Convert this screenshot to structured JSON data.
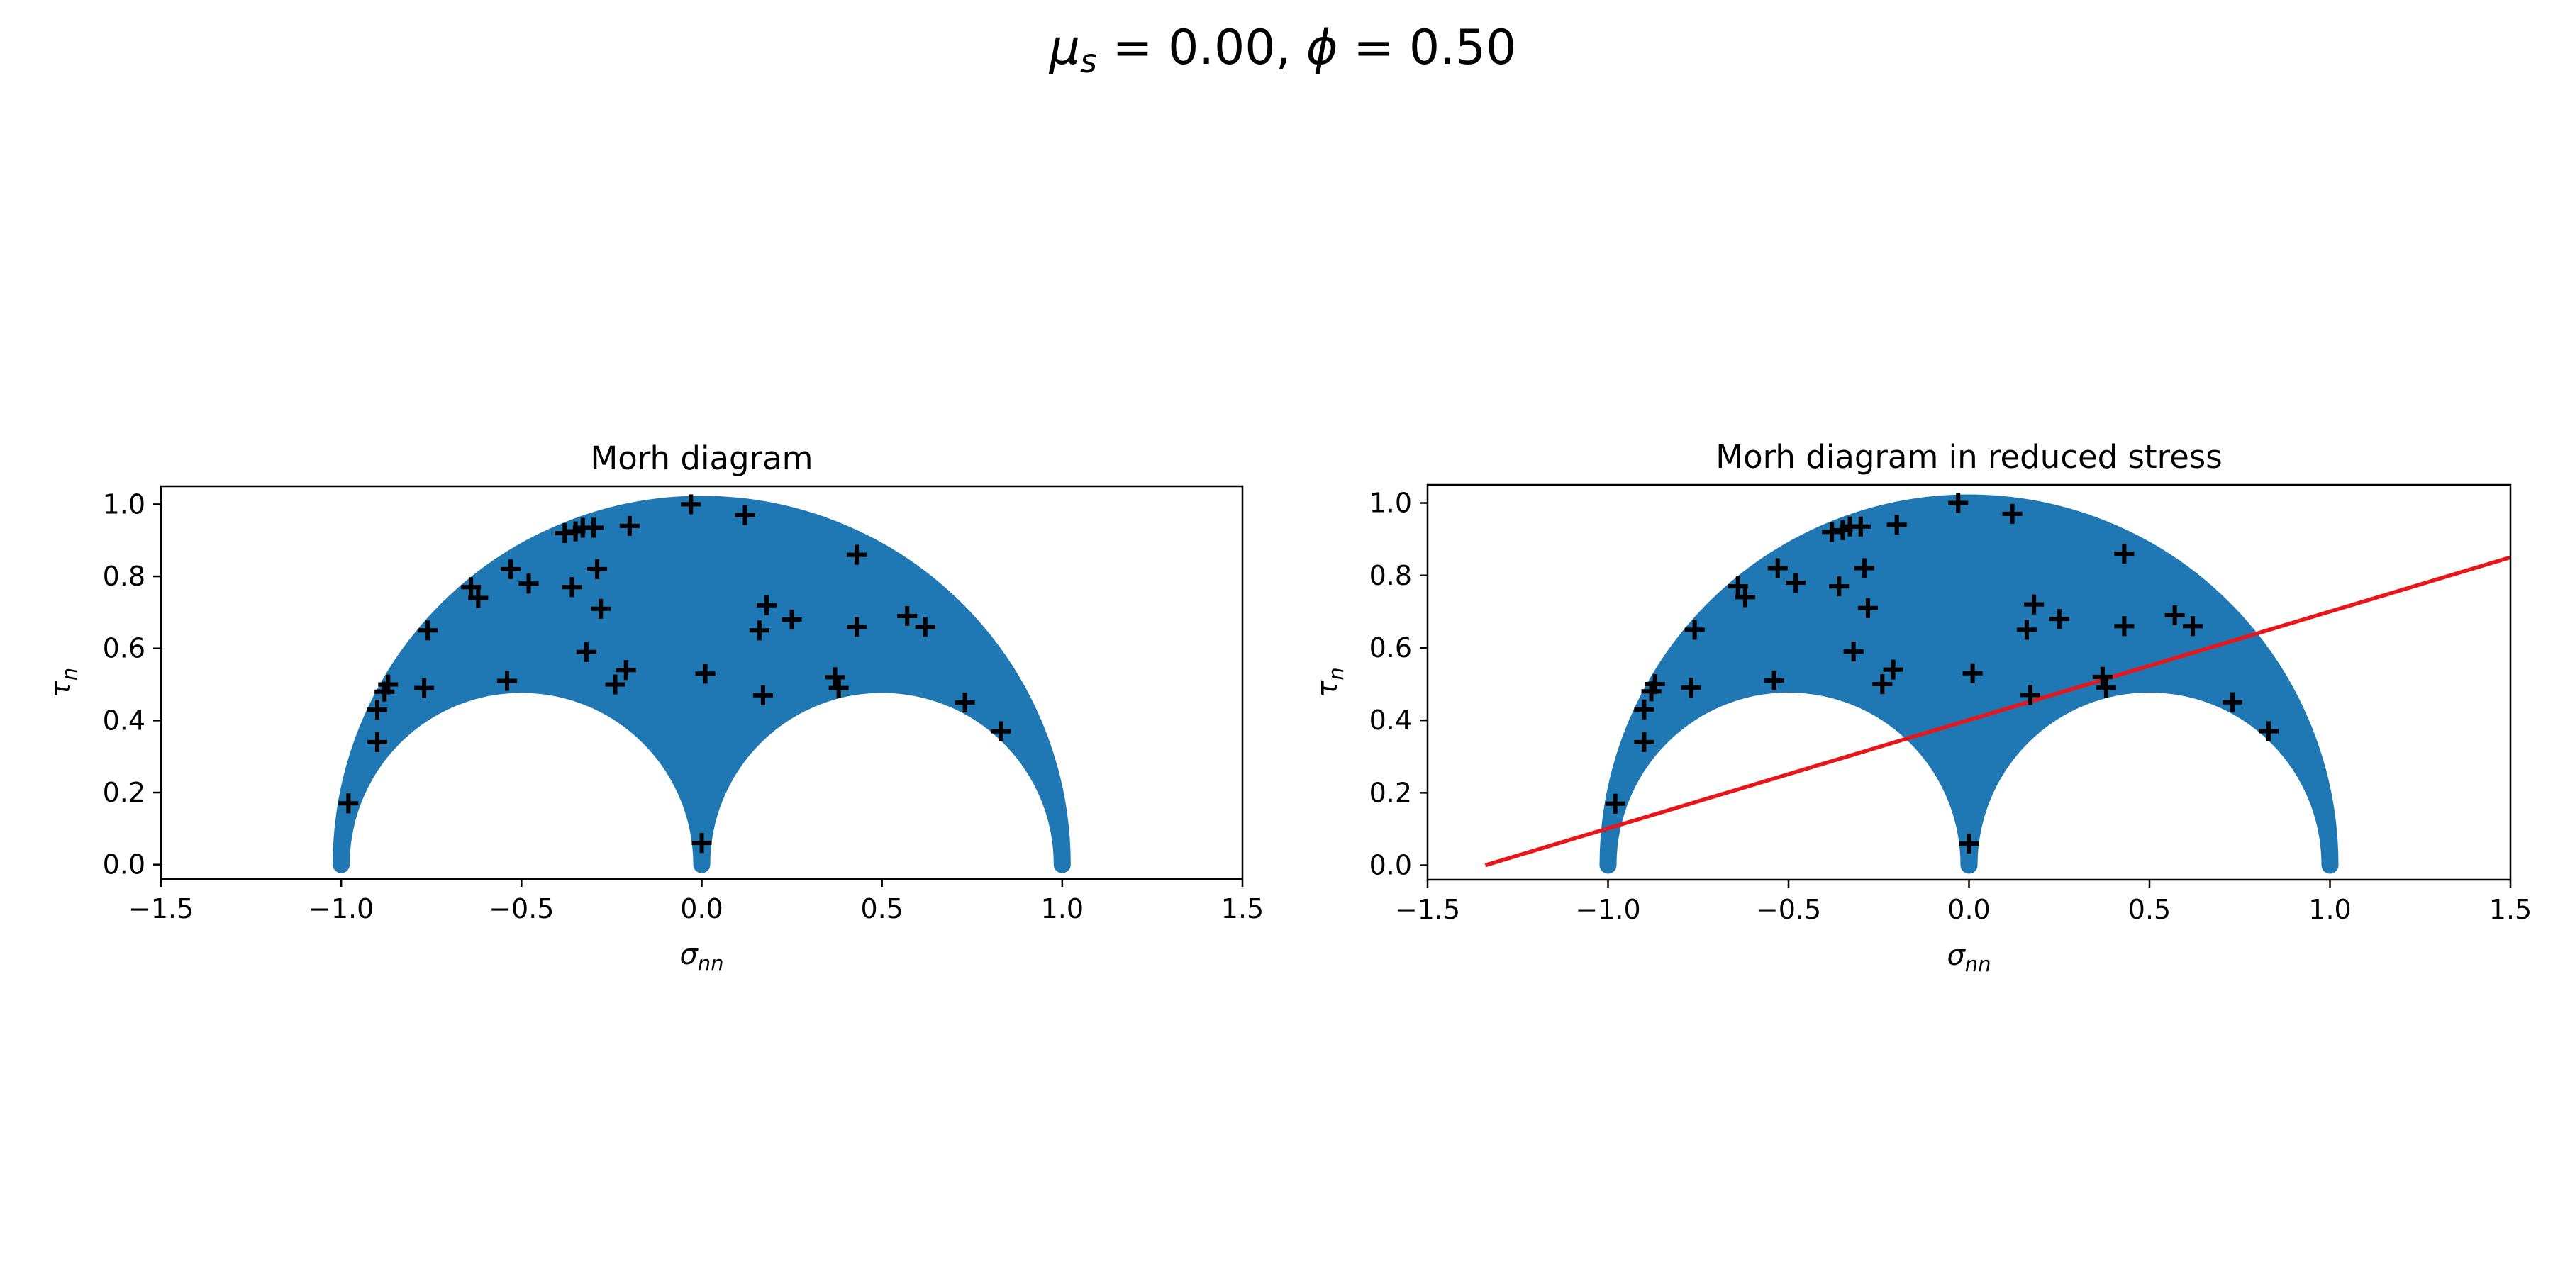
{
  "chart_data": {
    "suptitle": {
      "params": [
        {
          "symbol": "μ",
          "subscript": "s",
          "value": "0.00"
        },
        {
          "symbol": "ϕ",
          "subscript": "",
          "value": "0.50"
        }
      ]
    },
    "colors": {
      "region": "#1f77b4",
      "marker": "#000000",
      "line": "#e8161b"
    },
    "marker_style": "plus",
    "region_shape": "Mohr annulus between the outer circle (center 0, radius 1) and the two inner circles (centers -0.5 and 0.5, radius 0.5), upper half",
    "subplots": [
      {
        "type": "scatter",
        "title": "Morh diagram",
        "xlabel": {
          "symbol": "σ",
          "subscript": "nn"
        },
        "ylabel": {
          "symbol": "τ",
          "subscript": "n"
        },
        "xlim": [
          -1.5,
          1.5
        ],
        "ylim": [
          -0.04,
          1.05
        ],
        "xticks": [
          "−1.5",
          "−1.0",
          "−0.5",
          "0.0",
          "0.5",
          "1.0",
          "1.5"
        ],
        "yticks": [
          "0.0",
          "0.2",
          "0.4",
          "0.6",
          "0.8",
          "1.0"
        ],
        "points": [
          {
            "x": -0.03,
            "y": 1.0
          },
          {
            "x": 0.12,
            "y": 0.97
          },
          {
            "x": -0.2,
            "y": 0.94
          },
          {
            "x": -0.3,
            "y": 0.935
          },
          {
            "x": -0.33,
            "y": 0.935
          },
          {
            "x": -0.35,
            "y": 0.925
          },
          {
            "x": -0.38,
            "y": 0.92
          },
          {
            "x": -0.64,
            "y": 0.77
          },
          {
            "x": -0.62,
            "y": 0.74
          },
          {
            "x": -0.53,
            "y": 0.82
          },
          {
            "x": -0.48,
            "y": 0.78
          },
          {
            "x": -0.36,
            "y": 0.77
          },
          {
            "x": -0.29,
            "y": 0.82
          },
          {
            "x": -0.28,
            "y": 0.71
          },
          {
            "x": -0.76,
            "y": 0.65
          },
          {
            "x": -0.32,
            "y": 0.59
          },
          {
            "x": -0.21,
            "y": 0.54
          },
          {
            "x": -0.24,
            "y": 0.5
          },
          {
            "x": -0.54,
            "y": 0.51
          },
          {
            "x": -0.77,
            "y": 0.49
          },
          {
            "x": -0.87,
            "y": 0.5
          },
          {
            "x": -0.88,
            "y": 0.48
          },
          {
            "x": -0.9,
            "y": 0.43
          },
          {
            "x": -0.9,
            "y": 0.34
          },
          {
            "x": -0.98,
            "y": 0.17
          },
          {
            "x": 0.01,
            "y": 0.53
          },
          {
            "x": 0.0,
            "y": 0.06
          },
          {
            "x": 0.17,
            "y": 0.47
          },
          {
            "x": 0.16,
            "y": 0.65
          },
          {
            "x": 0.18,
            "y": 0.72
          },
          {
            "x": 0.25,
            "y": 0.68
          },
          {
            "x": 0.37,
            "y": 0.52
          },
          {
            "x": 0.38,
            "y": 0.49
          },
          {
            "x": 0.43,
            "y": 0.86
          },
          {
            "x": 0.43,
            "y": 0.66
          },
          {
            "x": 0.57,
            "y": 0.69
          },
          {
            "x": 0.62,
            "y": 0.66
          },
          {
            "x": 0.73,
            "y": 0.45
          },
          {
            "x": 0.83,
            "y": 0.37
          }
        ]
      },
      {
        "type": "scatter",
        "title": "Morh diagram in reduced stress",
        "xlabel": {
          "symbol": "σ",
          "subscript": "nn"
        },
        "ylabel": {
          "symbol": "τ",
          "subscript": "n"
        },
        "xlim": [
          -1.5,
          1.5
        ],
        "ylim": [
          -0.04,
          1.05
        ],
        "xticks": [
          "−1.5",
          "−1.0",
          "−0.5",
          "0.0",
          "0.5",
          "1.0",
          "1.5"
        ],
        "yticks": [
          "0.0",
          "0.2",
          "0.4",
          "0.6",
          "0.8",
          "1.0"
        ],
        "points": [
          {
            "x": -0.03,
            "y": 1.0
          },
          {
            "x": 0.12,
            "y": 0.97
          },
          {
            "x": -0.2,
            "y": 0.94
          },
          {
            "x": -0.3,
            "y": 0.935
          },
          {
            "x": -0.33,
            "y": 0.935
          },
          {
            "x": -0.35,
            "y": 0.925
          },
          {
            "x": -0.38,
            "y": 0.92
          },
          {
            "x": -0.64,
            "y": 0.77
          },
          {
            "x": -0.62,
            "y": 0.74
          },
          {
            "x": -0.53,
            "y": 0.82
          },
          {
            "x": -0.48,
            "y": 0.78
          },
          {
            "x": -0.36,
            "y": 0.77
          },
          {
            "x": -0.29,
            "y": 0.82
          },
          {
            "x": -0.28,
            "y": 0.71
          },
          {
            "x": -0.76,
            "y": 0.65
          },
          {
            "x": -0.32,
            "y": 0.59
          },
          {
            "x": -0.21,
            "y": 0.54
          },
          {
            "x": -0.24,
            "y": 0.5
          },
          {
            "x": -0.54,
            "y": 0.51
          },
          {
            "x": -0.77,
            "y": 0.49
          },
          {
            "x": -0.87,
            "y": 0.5
          },
          {
            "x": -0.88,
            "y": 0.48
          },
          {
            "x": -0.9,
            "y": 0.43
          },
          {
            "x": -0.9,
            "y": 0.34
          },
          {
            "x": -0.98,
            "y": 0.17
          },
          {
            "x": 0.01,
            "y": 0.53
          },
          {
            "x": 0.0,
            "y": 0.06
          },
          {
            "x": 0.17,
            "y": 0.47
          },
          {
            "x": 0.16,
            "y": 0.65
          },
          {
            "x": 0.18,
            "y": 0.72
          },
          {
            "x": 0.25,
            "y": 0.68
          },
          {
            "x": 0.37,
            "y": 0.52
          },
          {
            "x": 0.38,
            "y": 0.49
          },
          {
            "x": 0.43,
            "y": 0.86
          },
          {
            "x": 0.43,
            "y": 0.66
          },
          {
            "x": 0.57,
            "y": 0.69
          },
          {
            "x": 0.62,
            "y": 0.66
          },
          {
            "x": 0.73,
            "y": 0.45
          },
          {
            "x": 0.83,
            "y": 0.37
          }
        ],
        "lines": [
          {
            "x": [
              -1.34,
              1.5
            ],
            "y": [
              0.0,
              0.85
            ]
          }
        ]
      }
    ]
  }
}
